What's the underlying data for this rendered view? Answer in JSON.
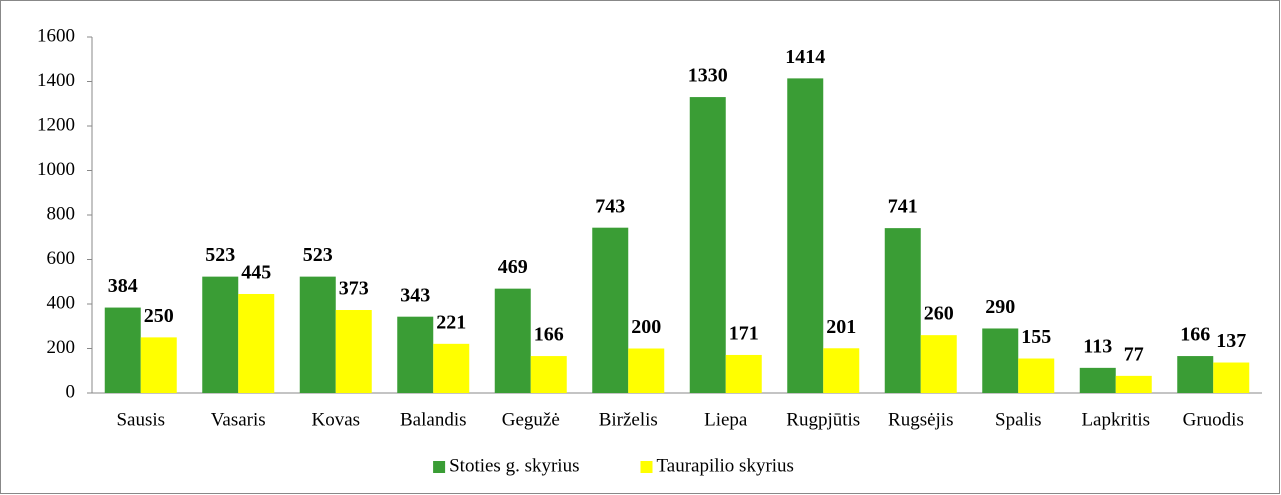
{
  "chart_data": {
    "type": "bar",
    "categories": [
      "Sausis",
      "Vasaris",
      "Kovas",
      "Balandis",
      "Gegužė",
      "Birželis",
      "Liepa",
      "Rugpjūtis",
      "Rugsėjis",
      "Spalis",
      "Lapkritis",
      "Gruodis"
    ],
    "series": [
      {
        "name": "Stoties g. skyrius",
        "color": "#3a9d35",
        "values": [
          384,
          523,
          523,
          343,
          469,
          743,
          1330,
          1414,
          741,
          290,
          113,
          166
        ]
      },
      {
        "name": "Taurapilio skyrius",
        "color": "#ffff00",
        "values": [
          250,
          445,
          373,
          221,
          166,
          200,
          171,
          201,
          260,
          155,
          77,
          137
        ]
      }
    ],
    "ylim": [
      0,
      1600
    ],
    "yticks": [
      0,
      200,
      400,
      600,
      800,
      1000,
      1200,
      1400,
      1600
    ],
    "grid": false,
    "legend": "bottom"
  }
}
